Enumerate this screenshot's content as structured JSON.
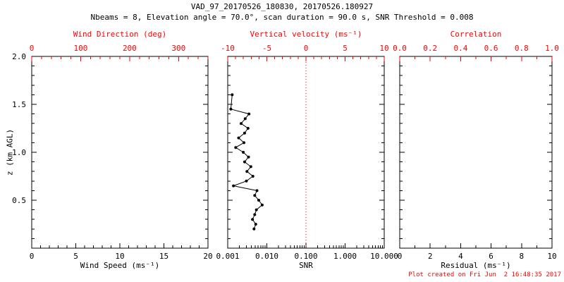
{
  "header": {
    "title": "VAD_97_20170526_180830, 20170526.180927",
    "subtitle": "Nbeams = 8, Elevation angle = 70.0°, scan duration = 90.0 s, SNR Threshold = 0.008"
  },
  "footer": {
    "text": "Plot created on Fri Jun  2 16:48:35 2017"
  },
  "colors": {
    "background": "#ffffff",
    "primary_axis": "#000000",
    "secondary_axis": "#ff0000",
    "data_line": "#000000",
    "reference_line": "#ff0000"
  },
  "y_axis": {
    "label": "z (km AGL)",
    "range": [
      0,
      2
    ],
    "major_ticks": [
      {
        "v": 0,
        "t": ""
      },
      {
        "v": 0.5,
        "t": "0.5"
      },
      {
        "v": 1,
        "t": "1.0"
      },
      {
        "v": 1.5,
        "t": "1.5"
      },
      {
        "v": 2,
        "t": "2.0"
      }
    ],
    "minor_step": 0.1
  },
  "panels": [
    {
      "id": "wind",
      "bottom": {
        "label": "Wind Speed (ms⁻¹)",
        "scale": "linear",
        "range": [
          0,
          20
        ],
        "minor_step": 1,
        "ticks": [
          {
            "v": 0,
            "t": "0"
          },
          {
            "v": 5,
            "t": "5"
          },
          {
            "v": 10,
            "t": "10"
          },
          {
            "v": 15,
            "t": "15"
          },
          {
            "v": 20,
            "t": "20"
          }
        ]
      },
      "top": {
        "label": "Wind Direction (deg)",
        "scale": "linear",
        "range": [
          0,
          360
        ],
        "minor_step": 20,
        "ticks": [
          {
            "v": 0,
            "t": "0"
          },
          {
            "v": 100,
            "t": "100"
          },
          {
            "v": 200,
            "t": "200"
          },
          {
            "v": 300,
            "t": "300"
          }
        ]
      }
    },
    {
      "id": "snr",
      "bottom": {
        "label": "SNR",
        "scale": "log",
        "range": [
          0.001,
          10
        ],
        "ticks": [
          {
            "v": 0.001,
            "t": "0.001"
          },
          {
            "v": 0.01,
            "t": "0.010"
          },
          {
            "v": 0.1,
            "t": "0.100"
          },
          {
            "v": 1,
            "t": "1.000"
          },
          {
            "v": 10,
            "t": "10.000"
          }
        ]
      },
      "top": {
        "label": "Vertical velocity (ms⁻¹)",
        "scale": "linear",
        "range": [
          -10,
          10
        ],
        "minor_step": 1,
        "ticks": [
          {
            "v": -10,
            "t": "-10"
          },
          {
            "v": -5,
            "t": "-5"
          },
          {
            "v": 0,
            "t": "0"
          },
          {
            "v": 5,
            "t": "5"
          },
          {
            "v": 10,
            "t": "10"
          }
        ]
      }
    },
    {
      "id": "residual",
      "bottom": {
        "label": "Residual (ms⁻¹)",
        "scale": "linear",
        "range": [
          0,
          10
        ],
        "minor_step": 1,
        "ticks": [
          {
            "v": 0,
            "t": "0"
          },
          {
            "v": 2,
            "t": "2"
          },
          {
            "v": 4,
            "t": "4"
          },
          {
            "v": 6,
            "t": "6"
          },
          {
            "v": 8,
            "t": "8"
          },
          {
            "v": 10,
            "t": "10"
          }
        ]
      },
      "top": {
        "label": "Correlation",
        "scale": "linear",
        "range": [
          0,
          1
        ],
        "minor_step": 0.1,
        "ticks": [
          {
            "v": 0,
            "t": "0.0"
          },
          {
            "v": 0.2,
            "t": "0.2"
          },
          {
            "v": 0.4,
            "t": "0.4"
          },
          {
            "v": 0.6,
            "t": "0.6"
          },
          {
            "v": 0.8,
            "t": "0.8"
          },
          {
            "v": 1,
            "t": "1.0"
          }
        ]
      }
    }
  ],
  "chart_data": {
    "type": "line",
    "title": "VAD_97_20170526_180830, 20170526.180927",
    "subtitle": "Nbeams = 8, Elevation angle = 70.0°, scan duration = 90.0 s, SNR Threshold = 0.008",
    "ylabel": "z (km AGL)",
    "ylim": [
      0,
      2
    ],
    "panels": [
      {
        "name": "wind-speed-and-direction",
        "xlabel": "Wind Speed (ms⁻¹)",
        "x2label": "Wind Direction (deg)",
        "xlim": [
          0,
          20
        ],
        "x2lim": [
          0,
          360
        ],
        "series": []
      },
      {
        "name": "snr-and-vertical-velocity",
        "xlabel": "SNR",
        "x2label": "Vertical velocity (ms⁻¹)",
        "xscale": "log",
        "xlim": [
          0.001,
          10
        ],
        "x2lim": [
          -10,
          10
        ],
        "ref_line": {
          "value": 0,
          "axis": "x2",
          "color": "#ff0000",
          "style": "dotted"
        },
        "series": [
          {
            "name": "snr-profile",
            "color": "#000000",
            "marker": "dot",
            "z_km": [
              1.6,
              1.45,
              1.4,
              1.35,
              1.3,
              1.25,
              1.2,
              1.15,
              1.1,
              1.05,
              1.0,
              0.95,
              0.9,
              0.85,
              0.8,
              0.75,
              0.7,
              0.65,
              0.6,
              0.55,
              0.5,
              0.45,
              0.4,
              0.35,
              0.3,
              0.25,
              0.2
            ],
            "snr": [
              0.0013,
              0.0012,
              0.0035,
              0.0028,
              0.0022,
              0.0033,
              0.0027,
              0.0019,
              0.0026,
              0.0016,
              0.0025,
              0.0034,
              0.0027,
              0.0039,
              0.0031,
              0.0044,
              0.003,
              0.0014,
              0.0056,
              0.0049,
              0.0062,
              0.0076,
              0.0054,
              0.0049,
              0.0043,
              0.0052,
              0.0047
            ]
          }
        ]
      },
      {
        "name": "residual-and-correlation",
        "xlabel": "Residual (ms⁻¹)",
        "x2label": "Correlation",
        "xlim": [
          0,
          10
        ],
        "x2lim": [
          0,
          1
        ],
        "series": []
      }
    ]
  }
}
